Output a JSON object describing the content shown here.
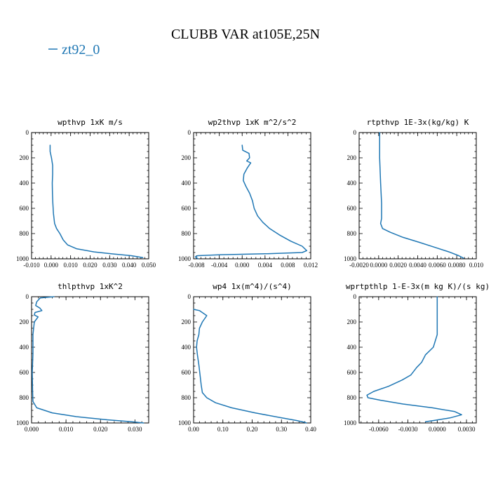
{
  "title": "CLUBB VAR at105E,25N",
  "legend": {
    "label": "zt92_0",
    "color": "#1f77b4"
  },
  "chart_data": [
    {
      "type": "line",
      "title": "wpthvp  1xK m/s",
      "xlim": [
        -0.01,
        0.05
      ],
      "ylim": [
        1000,
        0
      ],
      "xticks": [
        -0.01,
        0.0,
        0.01,
        0.02,
        0.03,
        0.04,
        0.05
      ],
      "xtick_labels": [
        "-0.010",
        "0.000",
        "0.010",
        "0.020",
        "0.030",
        "0.040",
        "0.050"
      ],
      "yticks": [
        0,
        200,
        400,
        600,
        800,
        1000
      ],
      "ytick_labels": [
        "0",
        "200",
        "400",
        "600",
        "800",
        "1000"
      ],
      "series": [
        {
          "name": "zt92_0",
          "points": [
            [
              -0.0005,
              100
            ],
            [
              -0.0005,
              150
            ],
            [
              0.0002,
              200
            ],
            [
              0.0008,
              260
            ],
            [
              0.0008,
              330
            ],
            [
              0.0006,
              400
            ],
            [
              0.0007,
              480
            ],
            [
              0.0009,
              560
            ],
            [
              0.0012,
              640
            ],
            [
              0.0018,
              720
            ],
            [
              0.0028,
              760
            ],
            [
              0.0045,
              800
            ],
            [
              0.0062,
              850
            ],
            [
              0.0085,
              890
            ],
            [
              0.013,
              920
            ],
            [
              0.022,
              945
            ],
            [
              0.032,
              962
            ],
            [
              0.041,
              975
            ],
            [
              0.047,
              990
            ]
          ]
        }
      ]
    },
    {
      "type": "line",
      "title": "wp2thvp  1xK m^2/s^2",
      "xlim": [
        -0.0085,
        0.012
      ],
      "ylim": [
        1000,
        0
      ],
      "xticks": [
        -0.008,
        -0.004,
        0.0,
        0.004,
        0.008,
        0.012
      ],
      "xtick_labels": [
        "-0.008",
        "-0.004",
        "0.000",
        "0.004",
        "0.008",
        "0.012"
      ],
      "yticks": [
        0,
        200,
        400,
        600,
        800,
        1000
      ],
      "ytick_labels": [
        "0",
        "200",
        "400",
        "600",
        "800",
        "1000"
      ],
      "series": [
        {
          "name": "zt92_0",
          "points": [
            [
              0.0,
              100
            ],
            [
              0.0001,
              140
            ],
            [
              0.0012,
              165
            ],
            [
              0.0013,
              200
            ],
            [
              0.0008,
              225
            ],
            [
              0.0015,
              240
            ],
            [
              0.0009,
              280
            ],
            [
              0.0003,
              330
            ],
            [
              0.0002,
              380
            ],
            [
              0.0007,
              430
            ],
            [
              0.0013,
              480
            ],
            [
              0.0018,
              540
            ],
            [
              0.0021,
              600
            ],
            [
              0.0027,
              660
            ],
            [
              0.0036,
              710
            ],
            [
              0.0048,
              760
            ],
            [
              0.0065,
              810
            ],
            [
              0.0085,
              860
            ],
            [
              0.0105,
              900
            ],
            [
              0.0113,
              935
            ],
            [
              0.0105,
              950
            ],
            [
              0.004,
              960
            ],
            [
              -0.004,
              968
            ],
            [
              -0.0078,
              975
            ],
            [
              -0.0082,
              985
            ],
            [
              -0.0077,
              1000
            ]
          ]
        }
      ]
    },
    {
      "type": "line",
      "title": "rtpthvp  1E-3x(kg/kg) K",
      "xlim": [
        -0.002,
        0.01
      ],
      "ylim": [
        1000,
        0
      ],
      "xticks": [
        -0.002,
        0.0,
        0.002,
        0.004,
        0.006,
        0.008,
        0.01
      ],
      "xtick_labels": [
        "-0.0020",
        "0.0000",
        "0.0020",
        "0.0040",
        "0.0060",
        "0.0080",
        "0.010"
      ],
      "yticks": [
        0,
        200,
        400,
        600,
        800,
        1000
      ],
      "ytick_labels": [
        "0",
        "200",
        "400",
        "600",
        "800",
        "1000"
      ],
      "series": [
        {
          "name": "zt92_0",
          "points": [
            [
              0.0001,
              0
            ],
            [
              0.0001,
              200
            ],
            [
              0.0002,
              400
            ],
            [
              0.0003,
              560
            ],
            [
              0.0003,
              620
            ],
            [
              0.0003,
              680
            ],
            [
              0.0002,
              720
            ],
            [
              0.0004,
              760
            ],
            [
              0.0012,
              790
            ],
            [
              0.0025,
              830
            ],
            [
              0.0042,
              870
            ],
            [
              0.0058,
              910
            ],
            [
              0.0072,
              945
            ],
            [
              0.0082,
              975
            ],
            [
              0.0087,
              995
            ]
          ]
        }
      ]
    },
    {
      "type": "line",
      "title": "thlpthvp  1xK^2",
      "xlim": [
        0.0,
        0.034
      ],
      "ylim": [
        1000,
        0
      ],
      "xticks": [
        0.0,
        0.01,
        0.02,
        0.03
      ],
      "xtick_labels": [
        "0.000",
        "0.010",
        "0.020",
        "0.030"
      ],
      "yticks": [
        0,
        200,
        400,
        600,
        800,
        1000
      ],
      "ytick_labels": [
        "0",
        "200",
        "400",
        "600",
        "800",
        "1000"
      ],
      "series": [
        {
          "name": "zt92_0",
          "points": [
            [
              0.0065,
              0
            ],
            [
              0.0025,
              10
            ],
            [
              0.0015,
              40
            ],
            [
              0.0012,
              70
            ],
            [
              0.0024,
              90
            ],
            [
              0.003,
              110
            ],
            [
              0.001,
              125
            ],
            [
              0.0008,
              145
            ],
            [
              0.0019,
              160
            ],
            [
              0.0008,
              200
            ],
            [
              0.0004,
              300
            ],
            [
              0.0004,
              450
            ],
            [
              0.0002,
              600
            ],
            [
              0.0003,
              750
            ],
            [
              0.0004,
              830
            ],
            [
              0.0015,
              880
            ],
            [
              0.006,
              920
            ],
            [
              0.013,
              950
            ],
            [
              0.022,
              975
            ],
            [
              0.029,
              990
            ],
            [
              0.0325,
              1000
            ]
          ]
        }
      ]
    },
    {
      "type": "line",
      "title": "wp4  1x(m^4)/(s^4)",
      "xlim": [
        0.0,
        0.4
      ],
      "ylim": [
        1000,
        0
      ],
      "xticks": [
        0.0,
        0.1,
        0.2,
        0.3,
        0.4
      ],
      "xtick_labels": [
        "0.00",
        "0.10",
        "0.20",
        "0.30",
        "0.40"
      ],
      "yticks": [
        0,
        200,
        400,
        600,
        800,
        1000
      ],
      "ytick_labels": [
        "0",
        "200",
        "400",
        "600",
        "800",
        "1000"
      ],
      "series": [
        {
          "name": "zt92_0",
          "points": [
            [
              0.0,
              100
            ],
            [
              0.02,
              110
            ],
            [
              0.045,
              150
            ],
            [
              0.03,
              200
            ],
            [
              0.02,
              250
            ],
            [
              0.018,
              300
            ],
            [
              0.012,
              350
            ],
            [
              0.01,
              400
            ],
            [
              0.013,
              460
            ],
            [
              0.018,
              540
            ],
            [
              0.022,
              620
            ],
            [
              0.026,
              700
            ],
            [
              0.03,
              760
            ],
            [
              0.045,
              800
            ],
            [
              0.075,
              840
            ],
            [
              0.13,
              880
            ],
            [
              0.21,
              920
            ],
            [
              0.29,
              955
            ],
            [
              0.35,
              980
            ],
            [
              0.38,
              995
            ],
            [
              0.385,
              1000
            ]
          ]
        }
      ]
    },
    {
      "type": "line",
      "title": "wprtpthlp  1-E-3x(m kg K)/(s kg)",
      "xlim": [
        -0.008,
        0.004
      ],
      "ylim": [
        1000,
        0
      ],
      "xticks": [
        -0.006,
        -0.003,
        0.0,
        0.003
      ],
      "xtick_labels": [
        "-0.0060",
        "-0.0030",
        "0.0000",
        "0.0030"
      ],
      "yticks": [
        0,
        200,
        400,
        600,
        800,
        1000
      ],
      "ytick_labels": [
        "0",
        "200",
        "400",
        "600",
        "800",
        "1000"
      ],
      "series": [
        {
          "name": "zt92_0",
          "points": [
            [
              0.0,
              0
            ],
            [
              0.0,
              200
            ],
            [
              0.0,
              300
            ],
            [
              -0.0004,
              400
            ],
            [
              -0.0012,
              460
            ],
            [
              -0.0016,
              520
            ],
            [
              -0.0021,
              560
            ],
            [
              -0.0027,
              620
            ],
            [
              -0.0036,
              660
            ],
            [
              -0.005,
              710
            ],
            [
              -0.0065,
              750
            ],
            [
              -0.0072,
              780
            ],
            [
              -0.0071,
              800
            ],
            [
              -0.0058,
              820
            ],
            [
              -0.0035,
              850
            ],
            [
              -0.0005,
              880
            ],
            [
              0.0018,
              910
            ],
            [
              0.0025,
              935
            ],
            [
              0.0013,
              960
            ],
            [
              -0.0003,
              980
            ],
            [
              -0.0012,
              990
            ]
          ]
        }
      ]
    }
  ]
}
